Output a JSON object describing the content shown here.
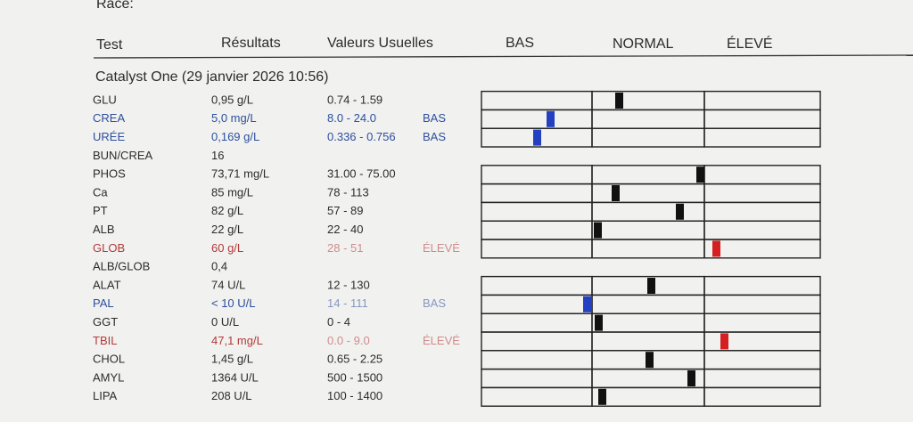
{
  "header": {
    "race": "Race:",
    "columns": {
      "test": "Test",
      "result": "Résultats",
      "range": "Valeurs Usuelles",
      "low": "BAS",
      "normal": "NORMAL",
      "high": "ÉLEVÉ"
    }
  },
  "section": {
    "title": "Catalyst One (29 janvier 2026 10:56)"
  },
  "table": {
    "rows": [
      {
        "test": "GLU",
        "result": "0,95 g/L",
        "range": "0.74 - 1.59"
      },
      {
        "test": "CREA",
        "result": "5,0 mg/L",
        "range": "8.0 - 24.0",
        "flag": "BAS",
        "color": "#2d4f9e"
      },
      {
        "test": "URÉE",
        "result": "0,169 g/L",
        "range": "0.336 - 0.756",
        "flag": "BAS",
        "color": "#2d4f9e"
      },
      {
        "test": "BUN/CREA",
        "result": "16"
      },
      {
        "test": "PHOS",
        "result": "73,71 mg/L",
        "range": "31.00 - 75.00"
      },
      {
        "test": "Ca",
        "result": "85 mg/L",
        "range": "78 - 113"
      },
      {
        "test": "PT",
        "result": "82 g/L",
        "range": "57 - 89"
      },
      {
        "test": "ALB",
        "result": "22 g/L",
        "range": "22 - 40"
      },
      {
        "test": "GLOB",
        "result": "60 g/L",
        "range": "28 - 51",
        "flag": "ÉLEVÉ",
        "color": "#b23a3a"
      },
      {
        "test": "ALB/GLOB",
        "result": "0,4"
      },
      {
        "test": "ALAT",
        "result": "74 U/L",
        "range": "12 - 130"
      },
      {
        "test": "PAL",
        "result": "< 10 U/L",
        "range": "14 - 111",
        "flag": "BAS",
        "color": "#2d4f9e"
      },
      {
        "test": "GGT",
        "result": "0 U/L",
        "range": "0 - 4"
      },
      {
        "test": "TBIL",
        "result": "47,1 mg/L",
        "range": "0.0 - 9.0",
        "flag": "ÉLEVÉ",
        "color": "#b23a3a"
      },
      {
        "test": "CHOL",
        "result": "1,45 g/L",
        "range": "0.65 - 2.25"
      },
      {
        "test": "AMYL",
        "result": "1364 U/L",
        "range": "500 - 1500"
      },
      {
        "test": "LIPA",
        "result": "208 U/L",
        "range": "100 - 1400"
      }
    ]
  }
}
